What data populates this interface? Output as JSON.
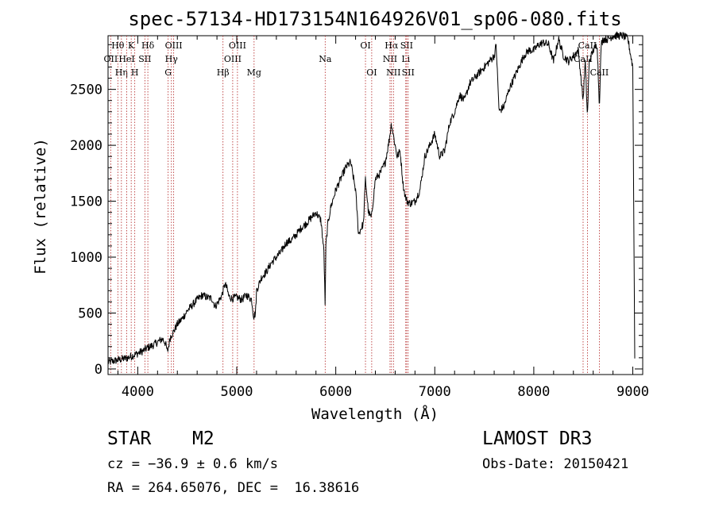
{
  "chart_data": {
    "type": "line",
    "title": "spec-57134-HD173154N164926V01_sp06-080.fits",
    "xlabel": "Wavelength (Å)",
    "ylabel": "Flux (relative)",
    "xlim": [
      3700,
      9100
    ],
    "ylim": [
      -50,
      2980
    ],
    "xticks": [
      4000,
      5000,
      6000,
      7000,
      8000,
      9000
    ],
    "yticks": [
      0,
      500,
      1000,
      1500,
      2000,
      2500
    ],
    "grid": false,
    "series": [
      {
        "name": "flux",
        "x": [
          3700,
          3750,
          3800,
          3850,
          3900,
          3950,
          4000,
          4050,
          4100,
          4150,
          4200,
          4250,
          4280,
          4300,
          4330,
          4360,
          4400,
          4450,
          4500,
          4550,
          4600,
          4650,
          4700,
          4750,
          4780,
          4800,
          4850,
          4880,
          4900,
          4920,
          4950,
          5000,
          5050,
          5100,
          5150,
          5170,
          5190,
          5200,
          5250,
          5300,
          5350,
          5400,
          5450,
          5500,
          5550,
          5600,
          5650,
          5700,
          5750,
          5800,
          5850,
          5880,
          5893,
          5900,
          5920,
          5950,
          6000,
          6050,
          6100,
          6150,
          6200,
          6230,
          6250,
          6280,
          6300,
          6330,
          6360,
          6400,
          6450,
          6500,
          6540,
          6563,
          6580,
          6600,
          6620,
          6650,
          6680,
          6700,
          6720,
          6750,
          6800,
          6850,
          6900,
          6950,
          7000,
          7050,
          7100,
          7150,
          7200,
          7250,
          7300,
          7350,
          7400,
          7450,
          7500,
          7550,
          7600,
          7620,
          7650,
          7700,
          7750,
          7800,
          7850,
          7900,
          7950,
          8000,
          8050,
          8100,
          8150,
          8200,
          8250,
          8300,
          8350,
          8400,
          8450,
          8498,
          8520,
          8542,
          8560,
          8600,
          8640,
          8662,
          8680,
          8700,
          8750,
          8800,
          8850,
          8900,
          8950,
          9000,
          9020
        ],
        "y": [
          60,
          70,
          80,
          90,
          100,
          120,
          140,
          160,
          190,
          210,
          240,
          270,
          230,
          150,
          290,
          330,
          400,
          450,
          520,
          570,
          620,
          660,
          640,
          630,
          560,
          580,
          660,
          760,
          720,
          650,
          630,
          640,
          620,
          660,
          620,
          470,
          500,
          700,
          820,
          870,
          950,
          1000,
          1050,
          1130,
          1150,
          1200,
          1260,
          1300,
          1350,
          1400,
          1330,
          1050,
          550,
          1100,
          1300,
          1450,
          1600,
          1700,
          1800,
          1850,
          1600,
          1200,
          1250,
          1300,
          1700,
          1400,
          1350,
          1700,
          1750,
          1850,
          2050,
          2200,
          2100,
          2000,
          1900,
          1950,
          1650,
          1550,
          1500,
          1480,
          1500,
          1600,
          1900,
          2000,
          2100,
          1900,
          1950,
          2200,
          2300,
          2450,
          2400,
          2550,
          2600,
          2650,
          2700,
          2750,
          2800,
          2900,
          2300,
          2350,
          2500,
          2600,
          2700,
          2800,
          2850,
          2850,
          2900,
          2920,
          2900,
          2750,
          2950,
          2800,
          2750,
          2800,
          2850,
          2400,
          2750,
          2250,
          2750,
          2850,
          2900,
          2350,
          2900,
          2950,
          2950,
          2980,
          2980,
          2980,
          2950,
          2700,
          100
        ]
      }
    ],
    "lines": [
      {
        "w": 3799,
        "label": "Hθ",
        "row": 1
      },
      {
        "w": 3727,
        "label": "OII",
        "row": 2
      },
      {
        "w": 3835,
        "label": "Hη",
        "row": 3
      },
      {
        "w": 3889,
        "label": "HeI",
        "row": 2
      },
      {
        "w": 3934,
        "label": "K",
        "row": 1
      },
      {
        "w": 3970,
        "label": "H",
        "row": 3
      },
      {
        "w": 4072,
        "label": "SII",
        "row": 2
      },
      {
        "w": 4102,
        "label": "Hδ",
        "row": 1
      },
      {
        "w": 4307,
        "label": "G",
        "row": 3
      },
      {
        "w": 4340,
        "label": "Hγ",
        "row": 2
      },
      {
        "w": 4363,
        "label": "OIII",
        "row": 1
      },
      {
        "w": 4861,
        "label": "Hβ",
        "row": 3
      },
      {
        "w": 4959,
        "label": "OIII",
        "row": 2
      },
      {
        "w": 5007,
        "label": "OIII",
        "row": 1
      },
      {
        "w": 5175,
        "label": "Mg",
        "row": 3
      },
      {
        "w": 5893,
        "label": "Na",
        "row": 2
      },
      {
        "w": 6300,
        "label": "OI",
        "row": 1
      },
      {
        "w": 6363,
        "label": "OI",
        "row": 3
      },
      {
        "w": 6548,
        "label": "NII",
        "row": 2
      },
      {
        "w": 6563,
        "label": "Hα",
        "row": 1
      },
      {
        "w": 6583,
        "label": "NII",
        "row": 3
      },
      {
        "w": 6707,
        "label": "Li",
        "row": 2
      },
      {
        "w": 6716,
        "label": "SII",
        "row": 1
      },
      {
        "w": 6731,
        "label": "SII",
        "row": 3
      },
      {
        "w": 8498,
        "label": "CaII",
        "row": 2
      },
      {
        "w": 8542,
        "label": "CaII",
        "row": 1
      },
      {
        "w": 8662,
        "label": "CaII",
        "row": 3
      }
    ]
  },
  "info": {
    "object_class": "STAR",
    "subclass": "M2",
    "survey": "LAMOST DR3",
    "cz": "cz = −36.9 ± 0.6 km/s",
    "obs_date": "Obs-Date: 20150421",
    "coords": "RA = 264.65076, DEC =  16.38616"
  },
  "colors": {
    "line_marker": "#b22222",
    "spectrum": "#000000"
  }
}
